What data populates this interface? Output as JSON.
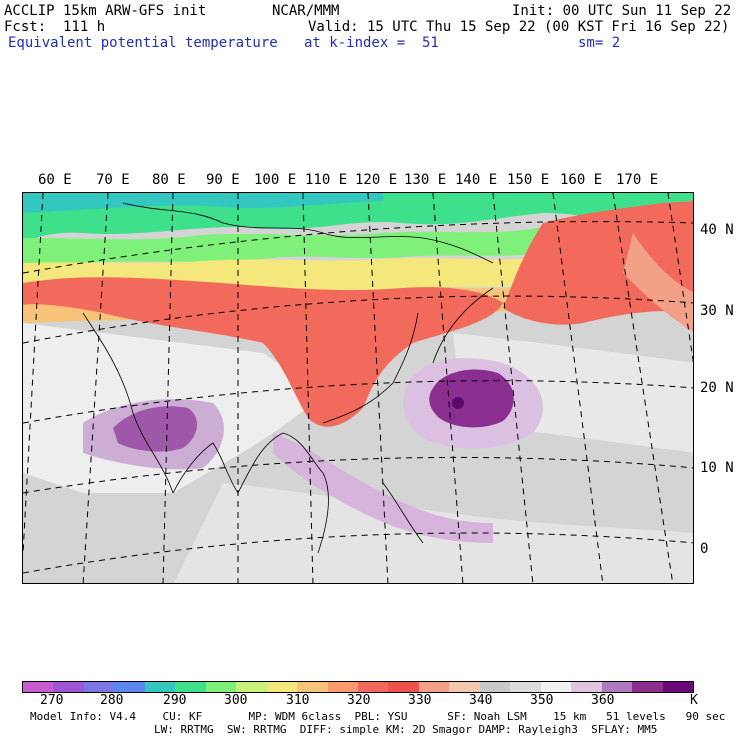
{
  "header": {
    "line1_left": "ACCLIP 15km ARW-GFS init",
    "line1_center": "NCAR/MMM",
    "line1_right": "Init: 00 UTC Sun 11 Sep 22",
    "line2_left": "Fcst:  111 h",
    "line2_right": "Valid: 15 UTC Thu 15 Sep 22 (00 KST Fri 16 Sep 22)",
    "field_name": "Equivalent potential temperature",
    "level": "at k-index =  51",
    "smoothing": "sm= 2"
  },
  "map": {
    "lon_labels": [
      "60 E",
      "70 E",
      "80 E",
      "90 E",
      "100 E",
      "110 E",
      "120 E",
      "130 E",
      "140 E",
      "150 E",
      "160 E",
      "170 E"
    ],
    "lat_labels": [
      "40 N",
      "30 N",
      "20 N",
      "10 N",
      "0"
    ]
  },
  "colorbar": {
    "colors": [
      "#c85bd0",
      "#9f55d4",
      "#7a76e2",
      "#5a88ee",
      "#34c7c0",
      "#3fe08c",
      "#7ff07a",
      "#c9f27a",
      "#f4e77c",
      "#f7c47a",
      "#f99a6e",
      "#f26a5b",
      "#ee5248",
      "#f3a088",
      "#f2c9ad",
      "#c9c9c9",
      "#dcdcdc",
      "#f2f2f2",
      "#e2c4e2",
      "#b07ac0",
      "#8a2e90",
      "#6a0a78"
    ],
    "labels": [
      "270",
      "280",
      "290",
      "300",
      "310",
      "320",
      "330",
      "340",
      "350",
      "360"
    ],
    "unit": "K"
  },
  "model_info": {
    "line1": "Model Info: V4.4    CU: KF       MP: WDM 6class  PBL: YSU      SF: Noah LSM    15 km   51 levels   90 sec",
    "line2": "LW: RRTMG  SW: RRTMG  DIFF: simple KM: 2D Smagor DAMP: Rayleigh3  SFLAY: MM5"
  }
}
